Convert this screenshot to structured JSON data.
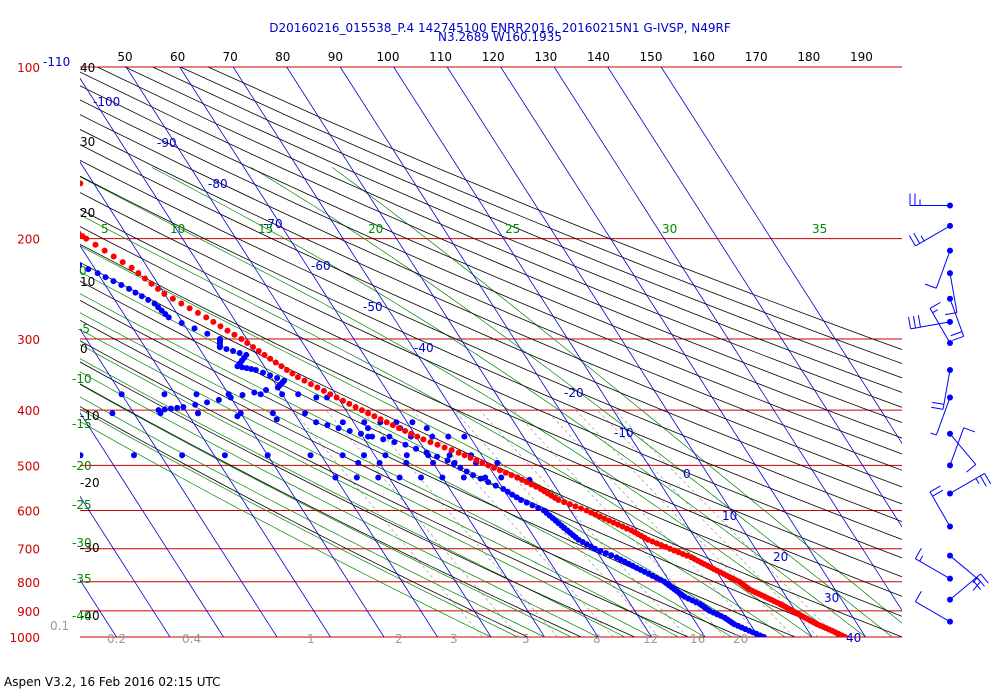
{
  "title_line1": "D20160216_015538_P.4 142745100 ENRR2016, 20160215N1 G-IVSP, N49RF",
  "title_line2": "N3.2689 W160.1935",
  "footer": "Aspen V3.2, 16 Feb 2016  02:15 UTC",
  "colors": {
    "temperature": "#ff0000",
    "dewpoint": "#0000ff",
    "isobar": "#cc0000",
    "isotherm": "#0000cc",
    "dry_adiabat": "#000000",
    "moist_adiabat": "#008800",
    "mixing_ratio": "#888888",
    "wind": "#0000ff"
  },
  "chart_data": {
    "type": "scatter",
    "diagram": "skew-T log-P",
    "pressure_levels": [
      100,
      200,
      300,
      400,
      500,
      600,
      700,
      800,
      900,
      1000
    ],
    "temperature_ticks_top": [
      "-110",
      "50",
      "60",
      "70",
      "80",
      "90",
      "100",
      "110",
      "120",
      "130",
      "140",
      "150",
      "160",
      "170",
      "180",
      "190"
    ],
    "left_column_labels": [
      "40",
      "30",
      "20",
      "10",
      "0",
      "-10",
      "-20",
      "-30",
      "-40"
    ],
    "isotherm_labels": [
      "-100",
      "-90",
      "-80",
      "-70",
      "-60",
      "-50",
      "-40",
      "-20",
      "-10",
      "0",
      "10",
      "20",
      "30",
      "40"
    ],
    "moist_adiabat_labels": [
      "5",
      "10",
      "15",
      "20",
      "25",
      "30",
      "35",
      "0",
      "-5",
      "-10",
      "-15",
      "-20",
      "-25",
      "-30",
      "-35",
      "-40"
    ],
    "mixing_ratio_labels": [
      "0.1",
      "0.2",
      "0.4",
      "1",
      "2",
      "3",
      "5",
      "8",
      "12",
      "16",
      "20"
    ],
    "stray_point": {
      "p": 160,
      "T": -62.5
    },
    "series": [
      {
        "name": "temperature",
        "points": [
          [
            178,
            -71
          ],
          [
            190,
            -70
          ],
          [
            200,
            -68
          ],
          [
            225,
            -63
          ],
          [
            250,
            -60
          ],
          [
            275,
            -55
          ],
          [
            300,
            -51
          ],
          [
            325,
            -48
          ],
          [
            350,
            -45
          ],
          [
            375,
            -41
          ],
          [
            400,
            -37
          ],
          [
            425,
            -33
          ],
          [
            450,
            -29
          ],
          [
            475,
            -24
          ],
          [
            500,
            -20
          ],
          [
            525,
            -16
          ],
          [
            550,
            -13
          ],
          [
            575,
            -11
          ],
          [
            600,
            -7
          ],
          [
            625,
            -4
          ],
          [
            650,
            -1
          ],
          [
            675,
            1
          ],
          [
            700,
            4
          ],
          [
            725,
            7
          ],
          [
            750,
            9
          ],
          [
            775,
            11
          ],
          [
            800,
            13
          ],
          [
            825,
            14
          ],
          [
            850,
            16
          ],
          [
            875,
            18
          ],
          [
            900,
            19.5
          ],
          [
            925,
            21
          ],
          [
            950,
            22.5
          ],
          [
            975,
            24.5
          ],
          [
            1005,
            26.5
          ]
        ]
      },
      {
        "name": "dewpoint",
        "points": [
          [
            201,
            -80
          ],
          [
            215,
            -75
          ],
          [
            230,
            -70
          ],
          [
            245,
            -66
          ],
          [
            260,
            -63
          ],
          [
            275,
            -62
          ],
          [
            300,
            -55
          ],
          [
            310,
            -56
          ],
          [
            320,
            -52
          ],
          [
            335,
            -55
          ],
          [
            340,
            -52
          ],
          [
            355,
            -48
          ],
          [
            365,
            -50
          ],
          [
            380,
            -60
          ],
          [
            395,
            -70
          ],
          [
            400,
            -75
          ],
          [
            420,
            -47
          ],
          [
            440,
            -40
          ],
          [
            460,
            -33
          ],
          [
            490,
            -27
          ],
          [
            520,
            -24
          ],
          [
            550,
            -20
          ],
          [
            575,
            -18
          ],
          [
            600,
            -15
          ],
          [
            625,
            -14
          ],
          [
            650,
            -13
          ],
          [
            675,
            -12
          ],
          [
            700,
            -10
          ],
          [
            725,
            -7
          ],
          [
            750,
            -5
          ],
          [
            775,
            -3
          ],
          [
            800,
            -1
          ],
          [
            825,
            0
          ],
          [
            850,
            1
          ],
          [
            875,
            3
          ],
          [
            900,
            4
          ],
          [
            925,
            6
          ],
          [
            950,
            7
          ],
          [
            975,
            9
          ],
          [
            1000,
            11
          ]
        ]
      },
      {
        "name": "dewpoint-scatter",
        "points": [
          [
            375,
            -110
          ],
          [
            375,
            -101
          ],
          [
            375,
            -90
          ],
          [
            375,
            -80
          ],
          [
            375,
            -72
          ],
          [
            375,
            -66
          ],
          [
            375,
            -60
          ],
          [
            375,
            -54
          ],
          [
            375,
            -50
          ],
          [
            375,
            -47
          ],
          [
            380,
            -44
          ],
          [
            380,
            -42
          ],
          [
            405,
            -95
          ],
          [
            405,
            -84
          ],
          [
            405,
            -75
          ],
          [
            405,
            -68
          ],
          [
            405,
            -60
          ],
          [
            405,
            -54
          ],
          [
            405,
            -48
          ],
          [
            420,
            -42
          ],
          [
            420,
            -38
          ],
          [
            420,
            -35
          ],
          [
            420,
            -32
          ],
          [
            420,
            -29
          ],
          [
            430,
            -38
          ],
          [
            430,
            -32
          ],
          [
            430,
            -27
          ],
          [
            445,
            -39
          ],
          [
            445,
            -35
          ],
          [
            445,
            -31
          ],
          [
            445,
            -27
          ],
          [
            445,
            -24
          ],
          [
            445,
            -21
          ],
          [
            480,
            -95
          ],
          [
            480,
            -85
          ],
          [
            480,
            -76
          ],
          [
            480,
            -68
          ],
          [
            480,
            -60
          ],
          [
            480,
            -52
          ],
          [
            480,
            -46
          ],
          [
            480,
            -42
          ],
          [
            480,
            -38
          ],
          [
            480,
            -34
          ],
          [
            480,
            -30
          ],
          [
            480,
            -26
          ],
          [
            480,
            -22
          ],
          [
            495,
            -44
          ],
          [
            495,
            -40
          ],
          [
            495,
            -35
          ],
          [
            495,
            -30
          ],
          [
            495,
            -26
          ],
          [
            495,
            -22
          ],
          [
            495,
            -18
          ],
          [
            525,
            -50
          ],
          [
            525,
            -46
          ],
          [
            525,
            -42
          ],
          [
            525,
            -38
          ],
          [
            525,
            -34
          ],
          [
            525,
            -30
          ],
          [
            525,
            -26
          ],
          [
            525,
            -22
          ],
          [
            525,
            -19
          ],
          [
            525,
            -16
          ],
          [
            530,
            -14
          ]
        ]
      }
    ],
    "wind_barbs": [
      {
        "p": 175,
        "dir": 270,
        "kt": 25
      },
      {
        "p": 190,
        "dir": 240,
        "kt": 25
      },
      {
        "p": 210,
        "dir": 200,
        "kt": 10
      },
      {
        "p": 230,
        "dir": 170,
        "kt": 10
      },
      {
        "p": 255,
        "dir": 160,
        "kt": 20
      },
      {
        "p": 280,
        "dir": 260,
        "kt": 30
      },
      {
        "p": 305,
        "dir": 330,
        "kt": 15
      },
      {
        "p": 340,
        "dir": 190,
        "kt": 20
      },
      {
        "p": 380,
        "dir": 200,
        "kt": 5
      },
      {
        "p": 440,
        "dir": 140,
        "kt": 10
      },
      {
        "p": 500,
        "dir": 20,
        "kt": 10
      },
      {
        "p": 560,
        "dir": 60,
        "kt": 25
      },
      {
        "p": 640,
        "dir": 330,
        "kt": 20
      },
      {
        "p": 720,
        "dir": 130,
        "kt": 15
      },
      {
        "p": 790,
        "dir": 300,
        "kt": 15
      },
      {
        "p": 860,
        "dir": 50,
        "kt": 30
      },
      {
        "p": 940,
        "dir": 300,
        "kt": 10
      }
    ]
  }
}
